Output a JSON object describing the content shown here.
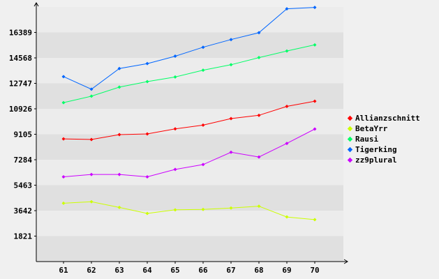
{
  "chart_data": {
    "type": "line",
    "title": "",
    "xlabel": "",
    "ylabel": "",
    "x": [
      61,
      62,
      63,
      64,
      65,
      66,
      67,
      68,
      69,
      70
    ],
    "y_ticks": [
      1821,
      3642,
      5463,
      7284,
      9105,
      10926,
      12747,
      14568,
      16389
    ],
    "ylim": [
      0,
      18210
    ],
    "grid": "horizontal bands",
    "legend_position": "right",
    "series": [
      {
        "name": "Allianzschnitt",
        "color": "#ff0000",
        "values": [
          8775,
          8730,
          9080,
          9130,
          9490,
          9760,
          10230,
          10460,
          11100,
          11470
        ]
      },
      {
        "name": "BetaYrr",
        "color": "#ccff00",
        "values": [
          4170,
          4280,
          3870,
          3440,
          3700,
          3730,
          3830,
          3960,
          3190,
          3000
        ]
      },
      {
        "name": "Rausi",
        "color": "#00ff66",
        "values": [
          11370,
          11830,
          12480,
          12870,
          13200,
          13690,
          14080,
          14590,
          15060,
          15500
        ]
      },
      {
        "name": "Tigerking",
        "color": "#0066ff",
        "values": [
          13230,
          12330,
          13810,
          14160,
          14690,
          15330,
          15880,
          16370,
          18080,
          18180
        ]
      },
      {
        "name": "zz9plural",
        "color": "#cc00ff",
        "values": [
          6060,
          6230,
          6230,
          6060,
          6590,
          6940,
          7820,
          7480,
          8450,
          9480
        ]
      }
    ]
  }
}
